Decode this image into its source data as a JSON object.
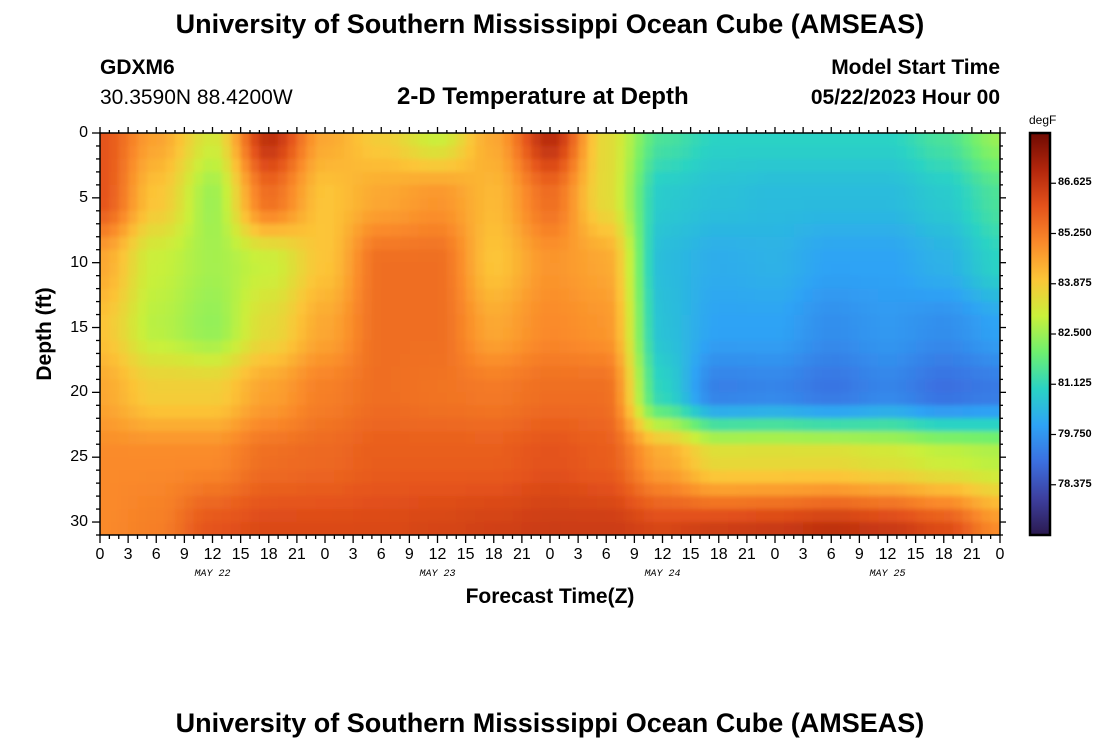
{
  "page": {
    "title_top": "University of Southern Mississippi Ocean Cube (AMSEAS)",
    "title_bottom": "University of Southern Mississippi Ocean Cube (AMSEAS)",
    "station": "GDXM6",
    "coordinates": "30.3590N  88.4200W",
    "plot_title": "2-D Temperature at Depth",
    "model_start_label": "Model Start Time",
    "model_start_value": "05/22/2023 Hour 00"
  },
  "chart_data": {
    "type": "heatmap",
    "title": "2-D Temperature at Depth",
    "xlabel": "Forecast Time(Z)",
    "ylabel": "Depth (ft)",
    "x_tick_labels": [
      "0",
      "3",
      "6",
      "9",
      "12",
      "15",
      "18",
      "21",
      "0",
      "3",
      "6",
      "9",
      "12",
      "15",
      "18",
      "21",
      "0",
      "3",
      "6",
      "9",
      "12",
      "15",
      "18",
      "21",
      "0",
      "3",
      "6",
      "9",
      "12",
      "15",
      "18",
      "21",
      "0"
    ],
    "date_labels": [
      "MAY 22",
      "MAY 23",
      "MAY 24",
      "MAY 25"
    ],
    "x_range_hours": [
      0,
      96
    ],
    "y_tick_labels": [
      "0",
      "5",
      "10",
      "15",
      "20",
      "25",
      "30"
    ],
    "y_range_ft": [
      0,
      31
    ],
    "colorbar": {
      "unit": "degF",
      "tick_labels": [
        "86.625",
        "85.250",
        "83.875",
        "82.500",
        "81.125",
        "79.750",
        "78.375"
      ],
      "range": [
        77.0,
        88.0
      ],
      "colors": [
        "#2b1a4f",
        "#3d3f9f",
        "#3b6fe0",
        "#2ea3f5",
        "#2ad3c4",
        "#6ef06e",
        "#c9f03a",
        "#fcc537",
        "#fa8a2a",
        "#e4521b",
        "#b2260c",
        "#6f0a02"
      ]
    },
    "values_grid": {
      "hours": [
        0,
        6,
        12,
        18,
        24,
        30,
        36,
        42,
        48,
        54,
        60,
        66,
        72,
        78,
        84,
        90,
        96
      ],
      "depths_ft": [
        0,
        5,
        10,
        15,
        20,
        25,
        31
      ],
      "temps_degF": [
        [
          86.0,
          84.6,
          83.2,
          86.8,
          84.5,
          83.8,
          83.0,
          84.5,
          86.9,
          83.5,
          81.5,
          81.0,
          81.0,
          81.0,
          81.0,
          81.5,
          82.5
        ],
        [
          86.0,
          84.0,
          82.5,
          85.5,
          84.0,
          84.5,
          84.8,
          84.2,
          85.5,
          83.5,
          80.8,
          80.6,
          80.5,
          80.5,
          80.5,
          80.8,
          81.5
        ],
        [
          84.5,
          83.0,
          82.6,
          83.0,
          84.0,
          85.5,
          85.5,
          84.0,
          84.8,
          84.5,
          80.5,
          80.2,
          80.3,
          80.0,
          80.0,
          80.3,
          81.0
        ],
        [
          84.0,
          82.8,
          82.4,
          83.5,
          84.5,
          85.5,
          85.5,
          84.5,
          85.0,
          84.8,
          80.6,
          80.0,
          80.0,
          79.6,
          79.8,
          79.6,
          80.0
        ],
        [
          84.5,
          83.8,
          83.8,
          84.6,
          85.2,
          85.5,
          85.4,
          85.3,
          85.5,
          85.5,
          81.0,
          79.3,
          79.4,
          79.1,
          79.4,
          79.0,
          79.2
        ],
        [
          85.0,
          85.0,
          85.0,
          85.5,
          85.6,
          85.8,
          85.8,
          85.8,
          86.0,
          85.8,
          84.5,
          83.5,
          83.5,
          83.5,
          83.3,
          83.0,
          82.8
        ],
        [
          85.0,
          85.2,
          86.0,
          86.2,
          86.2,
          86.2,
          86.3,
          86.4,
          86.5,
          86.5,
          86.3,
          86.5,
          86.6,
          86.8,
          86.6,
          86.2,
          85.0
        ]
      ]
    }
  }
}
